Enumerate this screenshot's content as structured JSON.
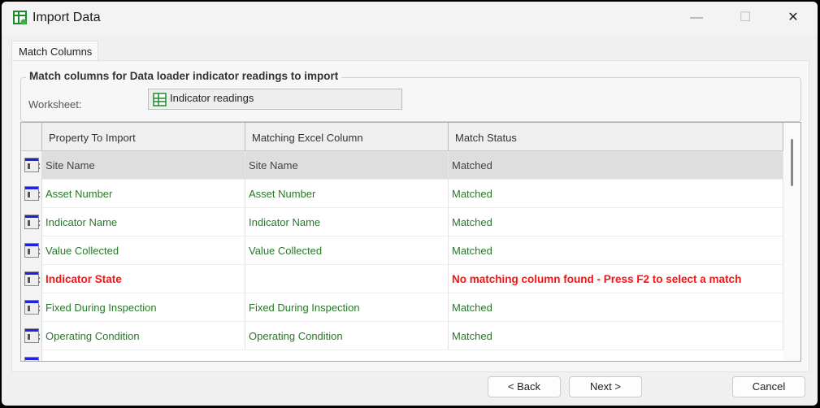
{
  "window": {
    "title": "Import Data",
    "minimize": "—",
    "maximize": "☐",
    "close": "✕"
  },
  "tab": "Match Columns",
  "group": {
    "title": "Match columns for Data loader indicator readings to import",
    "worksheet_label": "Worksheet:",
    "worksheet_value": "Indicator readings"
  },
  "grid": {
    "headers": [
      "Property To Import",
      "Matching Excel Column",
      "Match Status"
    ],
    "rows": [
      {
        "property": "Site Name",
        "column": "Site Name",
        "status": "Matched"
      },
      {
        "property": "Asset Number",
        "column": "Asset Number",
        "status": "Matched"
      },
      {
        "property": "Indicator Name",
        "column": "Indicator Name",
        "status": "Matched"
      },
      {
        "property": "Value Collected",
        "column": "Value Collected",
        "status": "Matched"
      },
      {
        "property": "Indicator State",
        "column": "",
        "status": "No matching column found - Press F2 to select a match"
      },
      {
        "property": "Fixed During Inspection",
        "column": "Fixed During Inspection",
        "status": "Matched"
      },
      {
        "property": "Operating Condition",
        "column": "Operating Condition",
        "status": "Matched"
      }
    ]
  },
  "buttons": {
    "back": "< Back",
    "next": "Next >",
    "cancel": "Cancel"
  },
  "colors": {
    "matched": "#267a26",
    "error": "#ff1010"
  }
}
